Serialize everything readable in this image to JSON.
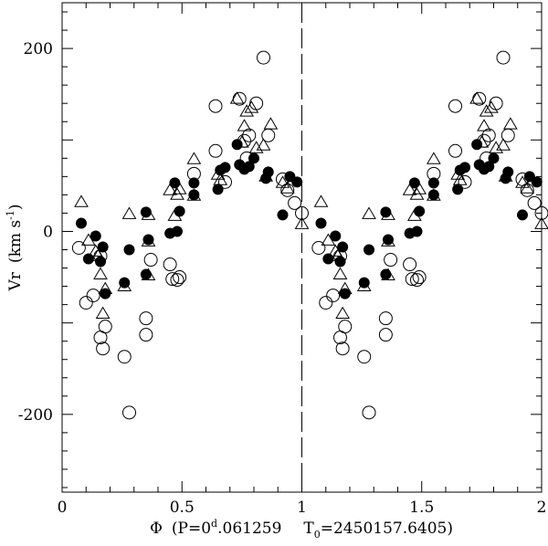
{
  "chart_data": {
    "type": "scatter",
    "title": "",
    "xlabel_parts": {
      "phi": "Φ",
      "open": "(P=0",
      "d": "d",
      "period": ".061259",
      "t": "T",
      "t_sub": "0",
      "epoch": "=2450157.6405)"
    },
    "ylabel_parts": {
      "main": "Vr",
      "unit": "(km s",
      "exp": "-1",
      "close": ")"
    },
    "xlim": [
      0,
      2
    ],
    "ylim": [
      -285,
      250
    ],
    "x_ticks": [
      {
        "v": 0,
        "label": "0"
      },
      {
        "v": 0.5,
        "label": "0.5"
      },
      {
        "v": 1,
        "label": "1"
      },
      {
        "v": 1.5,
        "label": "1.5"
      },
      {
        "v": 2,
        "label": "2"
      }
    ],
    "y_ticks": [
      {
        "v": -200,
        "label": "-200"
      },
      {
        "v": 0,
        "label": "0"
      },
      {
        "v": 200,
        "label": "200"
      }
    ],
    "divider_x": 1,
    "series": [
      {
        "marker": "filled-circle",
        "points": [
          [
            0.08,
            9
          ],
          [
            0.11,
            -30
          ],
          [
            0.14,
            -5
          ],
          [
            0.16,
            -33
          ],
          [
            0.17,
            -17
          ],
          [
            0.18,
            -68
          ],
          [
            0.26,
            -56
          ],
          [
            0.28,
            -20
          ],
          [
            0.35,
            21
          ],
          [
            0.35,
            -47
          ],
          [
            0.36,
            -9
          ],
          [
            0.45,
            -2
          ],
          [
            0.47,
            53
          ],
          [
            0.48,
            0
          ],
          [
            0.49,
            22
          ],
          [
            0.55,
            40
          ],
          [
            0.55,
            53
          ],
          [
            0.65,
            46
          ],
          [
            0.66,
            67
          ],
          [
            0.68,
            70
          ],
          [
            0.73,
            95
          ],
          [
            0.74,
            73
          ],
          [
            0.76,
            68
          ],
          [
            0.78,
            71
          ],
          [
            0.8,
            80
          ],
          [
            0.85,
            58
          ],
          [
            0.86,
            65
          ],
          [
            0.92,
            18
          ],
          [
            0.95,
            60
          ],
          [
            0.98,
            54
          ]
        ]
      },
      {
        "marker": "open-circle",
        "points": [
          [
            0.07,
            -18
          ],
          [
            0.1,
            -78
          ],
          [
            0.13,
            -70
          ],
          [
            0.16,
            -27
          ],
          [
            0.16,
            -116
          ],
          [
            0.17,
            -128
          ],
          [
            0.18,
            -104
          ],
          [
            0.26,
            -137
          ],
          [
            0.28,
            -198
          ],
          [
            0.35,
            -95
          ],
          [
            0.35,
            -113
          ],
          [
            0.37,
            -31
          ],
          [
            0.45,
            -36
          ],
          [
            0.46,
            -52
          ],
          [
            0.48,
            -53
          ],
          [
            0.49,
            -50
          ],
          [
            0.55,
            63
          ],
          [
            0.64,
            137
          ],
          [
            0.64,
            88
          ],
          [
            0.68,
            54
          ],
          [
            0.74,
            145
          ],
          [
            0.76,
            99
          ],
          [
            0.77,
            80
          ],
          [
            0.78,
            105
          ],
          [
            0.81,
            140
          ],
          [
            0.84,
            190
          ],
          [
            0.86,
            105
          ],
          [
            0.92,
            57
          ],
          [
            0.94,
            45
          ],
          [
            0.97,
            31
          ],
          [
            1.0,
            20
          ]
        ]
      },
      {
        "marker": "open-triangle",
        "points": [
          [
            0.08,
            32
          ],
          [
            0.11,
            -10
          ],
          [
            0.14,
            -22
          ],
          [
            0.15,
            -27
          ],
          [
            0.16,
            -47
          ],
          [
            0.17,
            -90
          ],
          [
            0.18,
            -63
          ],
          [
            0.26,
            -60
          ],
          [
            0.28,
            19
          ],
          [
            0.36,
            18
          ],
          [
            0.36,
            -48
          ],
          [
            0.36,
            -11
          ],
          [
            0.45,
            45
          ],
          [
            0.47,
            17
          ],
          [
            0.48,
            40
          ],
          [
            0.49,
            46
          ],
          [
            0.55,
            79
          ],
          [
            0.55,
            39
          ],
          [
            0.65,
            62
          ],
          [
            0.66,
            56
          ],
          [
            0.73,
            145
          ],
          [
            0.75,
            97
          ],
          [
            0.76,
            115
          ],
          [
            0.77,
            131
          ],
          [
            0.79,
            135
          ],
          [
            0.81,
            91
          ],
          [
            0.84,
            94
          ],
          [
            0.85,
            60
          ],
          [
            0.87,
            117
          ],
          [
            0.92,
            53
          ],
          [
            0.94,
            47
          ],
          [
            1.0,
            8
          ]
        ]
      }
    ]
  }
}
